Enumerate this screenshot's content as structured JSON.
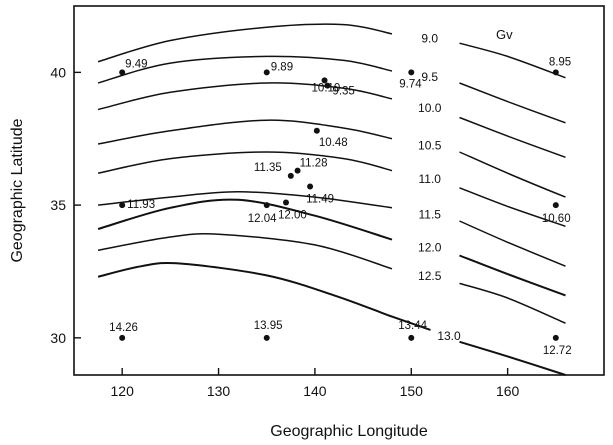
{
  "chart_data": {
    "type": "scatter",
    "title": "",
    "xlabel": "Geographic Longitude",
    "ylabel": "Geographic Latitude",
    "xlim": [
      115,
      170
    ],
    "ylim": [
      28.6,
      42.5
    ],
    "xticks": [
      "120",
      "130",
      "140",
      "150",
      "160"
    ],
    "yticks": [
      "30",
      "35",
      "40"
    ],
    "unit_label": "Gv",
    "points": [
      {
        "lon": 120.0,
        "lat": 40.0,
        "label": "9.49"
      },
      {
        "lon": 135.0,
        "lat": 40.0,
        "label": "9.89"
      },
      {
        "lon": 141.0,
        "lat": 39.7,
        "label": "10.10"
      },
      {
        "lon": 141.3,
        "lat": 39.5,
        "label": "9.35"
      },
      {
        "lon": 150.0,
        "lat": 40.0,
        "label": "9.74"
      },
      {
        "lon": 165.0,
        "lat": 40.0,
        "label": "8.95"
      },
      {
        "lon": 140.2,
        "lat": 37.8,
        "label": "10.48"
      },
      {
        "lon": 137.5,
        "lat": 36.1,
        "label": "11.35"
      },
      {
        "lon": 138.2,
        "lat": 36.3,
        "label": "11.28"
      },
      {
        "lon": 139.5,
        "lat": 35.7,
        "label": "11.49"
      },
      {
        "lon": 120.0,
        "lat": 35.0,
        "label": "11.93"
      },
      {
        "lon": 135.0,
        "lat": 35.0,
        "label": "12.04"
      },
      {
        "lon": 137.0,
        "lat": 35.1,
        "label": "12.00"
      },
      {
        "lon": 165.0,
        "lat": 35.0,
        "label": "10.60"
      },
      {
        "lon": 120.0,
        "lat": 30.0,
        "label": "14.26"
      },
      {
        "lon": 135.0,
        "lat": 30.0,
        "label": "13.95"
      },
      {
        "lon": 150.0,
        "lat": 30.0,
        "label": "13.44"
      },
      {
        "lon": 165.0,
        "lat": 30.0,
        "label": "12.72"
      }
    ],
    "contours": [
      {
        "label": "9.0",
        "left": [
          [
            117.5,
            40.4
          ],
          [
            125,
            41.2
          ],
          [
            135,
            41.7
          ],
          [
            143,
            41.8
          ],
          [
            148,
            41.45
          ]
        ],
        "right": [
          [
            155,
            41.1
          ],
          [
            160,
            40.6
          ],
          [
            166,
            39.8
          ]
        ]
      },
      {
        "label": "9.5",
        "left": [
          [
            117.5,
            39.6
          ],
          [
            125,
            40.35
          ],
          [
            135,
            40.6
          ],
          [
            143,
            40.45
          ],
          [
            148,
            40.05
          ]
        ],
        "right": [
          [
            155,
            39.6
          ],
          [
            160,
            38.9
          ],
          [
            166,
            38.1
          ]
        ]
      },
      {
        "label": "10.0",
        "left": [
          [
            117.5,
            38.6
          ],
          [
            125,
            39.25
          ],
          [
            135,
            39.6
          ],
          [
            143,
            39.4
          ],
          [
            148,
            39.0
          ]
        ],
        "right": [
          [
            155,
            38.3
          ],
          [
            160,
            37.6
          ],
          [
            166,
            36.8
          ]
        ]
      },
      {
        "label": "10.5",
        "left": [
          [
            117.5,
            37.3
          ],
          [
            125,
            37.8
          ],
          [
            135,
            38.2
          ],
          [
            143,
            37.9
          ],
          [
            148,
            37.5
          ]
        ],
        "right": [
          [
            155,
            37.0
          ],
          [
            160,
            36.2
          ],
          [
            166,
            35.3
          ]
        ]
      },
      {
        "label": "11.0",
        "left": [
          [
            117.5,
            36.2
          ],
          [
            125,
            36.75
          ],
          [
            135,
            37.0
          ],
          [
            143,
            36.75
          ],
          [
            148,
            36.3
          ]
        ],
        "right": [
          [
            155,
            35.65
          ],
          [
            160,
            34.95
          ],
          [
            166,
            34.2
          ]
        ]
      },
      {
        "label": "11.5",
        "left": [
          [
            117.5,
            35.0
          ],
          [
            125,
            35.3
          ],
          [
            132,
            35.5
          ],
          [
            140,
            35.3
          ],
          [
            148,
            34.9
          ]
        ],
        "right": [
          [
            155,
            34.4
          ],
          [
            160,
            33.6
          ],
          [
            166,
            32.7
          ]
        ]
      },
      {
        "label": "12.0",
        "left": [
          [
            117.5,
            34.1
          ],
          [
            125,
            34.9
          ],
          [
            132,
            35.2
          ],
          [
            140,
            34.6
          ],
          [
            148,
            33.7
          ]
        ],
        "right": [
          [
            155,
            33.1
          ],
          [
            160,
            32.4
          ],
          [
            166,
            31.6
          ]
        ]
      },
      {
        "label": "12.5",
        "left": [
          [
            117.5,
            33.3
          ],
          [
            125,
            33.8
          ],
          [
            130,
            33.9
          ],
          [
            140,
            33.5
          ],
          [
            148,
            32.6
          ]
        ],
        "right": [
          [
            155,
            32.05
          ],
          [
            160,
            31.5
          ],
          [
            166,
            30.55
          ]
        ]
      },
      {
        "label": "13.0",
        "left": [
          [
            117.5,
            32.3
          ],
          [
            122,
            32.7
          ],
          [
            126,
            32.8
          ],
          [
            135,
            32.35
          ],
          [
            142,
            31.6
          ],
          [
            148,
            30.8
          ],
          [
            152,
            30.3
          ]
        ],
        "right": [
          [
            155,
            29.85
          ],
          [
            160,
            29.3
          ],
          [
            166,
            28.6
          ]
        ]
      }
    ]
  }
}
